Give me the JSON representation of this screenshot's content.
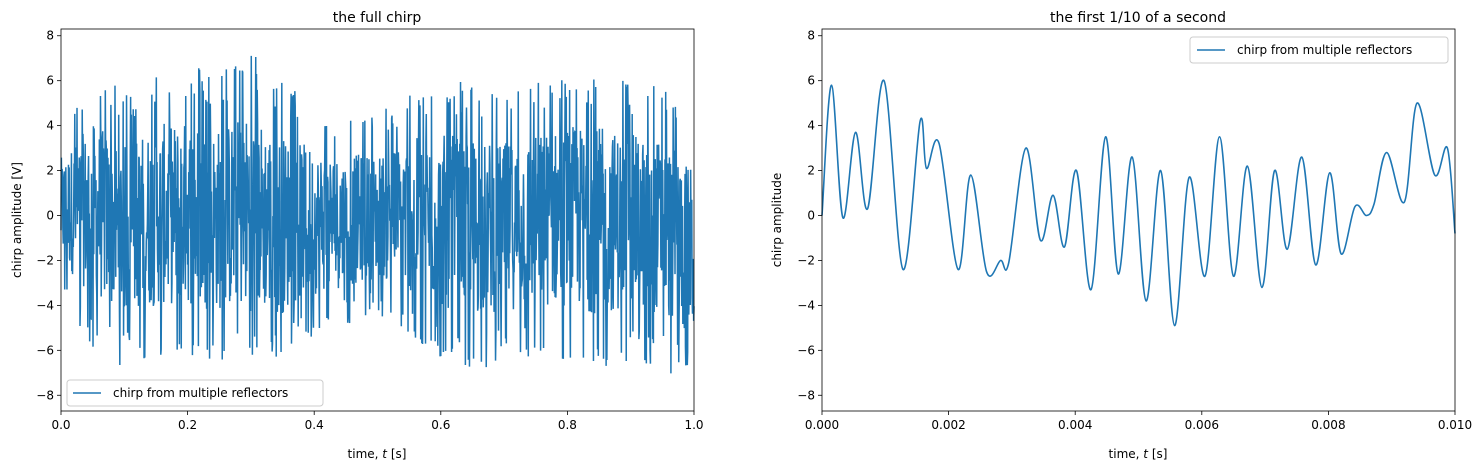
{
  "chart_data": [
    {
      "type": "line",
      "title": "the full chirp",
      "xlabel": "time, t [s]",
      "xlabel_parts": [
        "time, ",
        "t",
        " [s]"
      ],
      "ylabel": "chirp amplitude [V]",
      "xlim": [
        0.0,
        1.0
      ],
      "ylim": [
        -8.7,
        8.3
      ],
      "xticks": [
        0.0,
        0.2,
        0.4,
        0.6,
        0.8,
        1.0
      ],
      "xtick_labels": [
        "0.0",
        "0.2",
        "0.4",
        "0.6",
        "0.8",
        "1.0"
      ],
      "yticks": [
        -8,
        -6,
        -4,
        -2,
        0,
        2,
        4,
        6,
        8
      ],
      "ytick_labels": [
        "−8",
        "−6",
        "−4",
        "−2",
        "0",
        "2",
        "4",
        "6",
        "8"
      ],
      "legend_placement": "lower-left",
      "grid": false,
      "series": [
        {
          "name": "chirp from multiple reflectors",
          "color": "#1f77b4",
          "rendering": "dense noisy oscillation filling the band",
          "envelope": {
            "x": [
              0.0,
              0.05,
              0.1,
              0.15,
              0.2,
              0.25,
              0.3,
              0.35,
              0.4,
              0.45,
              0.5,
              0.55,
              0.6,
              0.65,
              0.7,
              0.75,
              0.8,
              0.85,
              0.9,
              0.95,
              1.0
            ],
            "upper": [
              4.0,
              6.5,
              5.5,
              6.5,
              6.8,
              6.5,
              7.4,
              6.0,
              5.0,
              4.5,
              4.5,
              5.5,
              6.0,
              6.0,
              5.5,
              6.0,
              6.5,
              6.5,
              6.0,
              5.8,
              4.5
            ],
            "lower": [
              -3.5,
              -6.0,
              -6.8,
              -6.5,
              -6.5,
              -6.8,
              -7.0,
              -6.8,
              -5.5,
              -5.0,
              -4.5,
              -5.5,
              -6.5,
              -7.0,
              -6.5,
              -6.5,
              -6.5,
              -7.0,
              -6.5,
              -6.8,
              -8.0
            ]
          }
        }
      ]
    },
    {
      "type": "line",
      "title": "the first 1/10 of a second",
      "xlabel": "time, t [s]",
      "xlabel_parts": [
        "time, ",
        "t",
        " [s]"
      ],
      "ylabel": "chirp amplitude",
      "xlim": [
        0.0,
        0.01
      ],
      "ylim": [
        -8.7,
        8.3
      ],
      "xticks": [
        0.0,
        0.002,
        0.004,
        0.006,
        0.008,
        0.01
      ],
      "xtick_labels": [
        "0.000",
        "0.002",
        "0.004",
        "0.006",
        "0.008",
        "0.010"
      ],
      "yticks": [
        -8,
        -6,
        -4,
        -2,
        0,
        2,
        4,
        6,
        8
      ],
      "ytick_labels": [
        "−8",
        "−6",
        "−4",
        "−2",
        "0",
        "2",
        "4",
        "6",
        "8"
      ],
      "legend_placement": "upper-right",
      "grid": false,
      "series": [
        {
          "name": "chirp from multiple reflectors",
          "color": "#1f77b4",
          "x": [
            0.0,
            0.00015,
            0.00033,
            0.00053,
            0.00072,
            0.00098,
            0.00128,
            0.00155,
            0.00165,
            0.00185,
            0.00215,
            0.00235,
            0.0026,
            0.00282,
            0.00295,
            0.00322,
            0.00345,
            0.00365,
            0.00383,
            0.00402,
            0.00425,
            0.00448,
            0.00468,
            0.0049,
            0.00512,
            0.00535,
            0.00557,
            0.0058,
            0.00605,
            0.00628,
            0.0065,
            0.00672,
            0.00695,
            0.00715,
            0.00735,
            0.00758,
            0.0078,
            0.00802,
            0.0082,
            0.00842,
            0.0086,
            0.00872,
            0.00892,
            0.0092,
            0.0094,
            0.00968,
            0.00988,
            0.01
          ],
          "y": [
            0.0,
            5.8,
            -0.1,
            3.7,
            0.3,
            6.0,
            -2.4,
            4.2,
            2.1,
            3.2,
            -2.4,
            1.8,
            -2.5,
            -2.0,
            -2.1,
            3.0,
            -1.1,
            0.9,
            -1.4,
            2.0,
            -3.3,
            3.5,
            -2.6,
            2.6,
            -3.8,
            2.0,
            -4.9,
            1.7,
            -2.7,
            3.5,
            -2.7,
            2.2,
            -3.2,
            2.0,
            -1.5,
            2.6,
            -2.2,
            1.9,
            -1.7,
            0.4,
            0.0,
            0.5,
            2.8,
            0.6,
            5.0,
            1.8,
            3.0,
            -0.8
          ]
        }
      ]
    }
  ]
}
